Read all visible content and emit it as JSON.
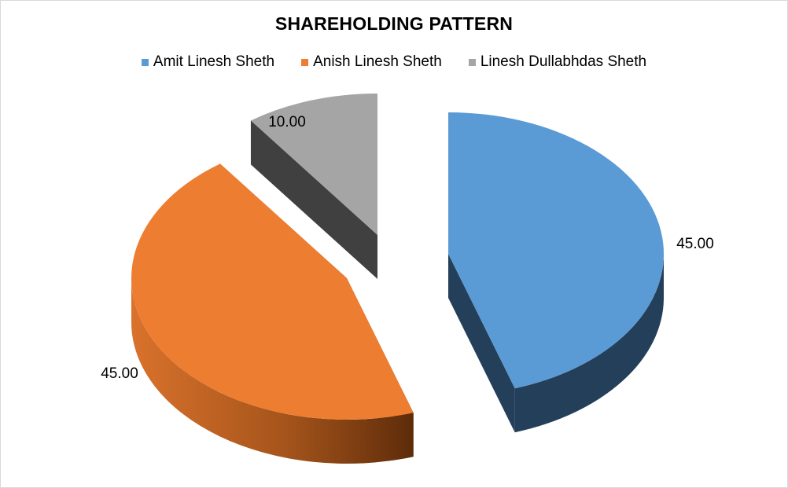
{
  "chart_data": {
    "type": "pie",
    "title": "SHAREHOLDING PATTERN",
    "legend_position": "top",
    "categories": [
      "Amit Linesh Sheth",
      "Anish Linesh Sheth",
      "Linesh Dullabhdas Sheth"
    ],
    "values": [
      45.0,
      45.0,
      10.0
    ],
    "data_labels": [
      "45.00",
      "45.00",
      "10.00"
    ],
    "colors": [
      "#5b9bd5",
      "#ed7d31",
      "#a5a5a5"
    ],
    "exploded": true,
    "three_d": true
  }
}
